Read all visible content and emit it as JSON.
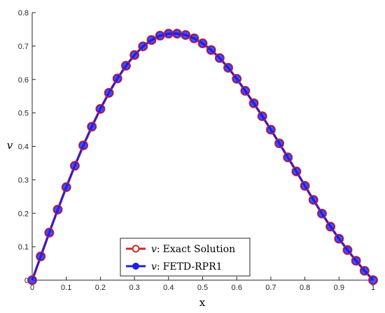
{
  "chart_data": {
    "type": "line",
    "title": "",
    "xlabel": "x",
    "ylabel": "v",
    "xlim": [
      0,
      1
    ],
    "ylim": [
      0,
      0.8
    ],
    "xticks": [
      "0",
      "0.1",
      "0.2",
      "0.3",
      "0.4",
      "0.5",
      "0.6",
      "0.7",
      "0.8",
      "0.9",
      "1"
    ],
    "yticks": [
      "0",
      "0.1",
      "0.2",
      "0.3",
      "0.4",
      "0.5",
      "0.6",
      "0.7",
      "0.8"
    ],
    "grid": false,
    "legend_position": "bottom-center",
    "x": [
      0,
      0.025,
      0.05,
      0.075,
      0.1,
      0.125,
      0.15,
      0.175,
      0.2,
      0.225,
      0.25,
      0.275,
      0.3,
      0.325,
      0.35,
      0.375,
      0.4,
      0.425,
      0.45,
      0.475,
      0.5,
      0.525,
      0.55,
      0.575,
      0.6,
      0.625,
      0.65,
      0.675,
      0.7,
      0.725,
      0.75,
      0.775,
      0.8,
      0.825,
      0.85,
      0.875,
      0.9,
      0.925,
      0.95,
      0.975,
      1
    ],
    "series": [
      {
        "name": "Exact Solution",
        "name_prefix": "v",
        "color": "#d62728",
        "marker": "circle-open",
        "values": [
          0,
          0.071,
          0.142,
          0.211,
          0.278,
          0.342,
          0.403,
          0.459,
          0.512,
          0.56,
          0.603,
          0.641,
          0.673,
          0.699,
          0.718,
          0.731,
          0.737,
          0.737,
          0.733,
          0.723,
          0.708,
          0.688,
          0.664,
          0.635,
          0.602,
          0.566,
          0.529,
          0.49,
          0.45,
          0.409,
          0.367,
          0.325,
          0.282,
          0.24,
          0.199,
          0.16,
          0.124,
          0.09,
          0.058,
          0.028,
          0
        ]
      },
      {
        "name": "FETD-RPR1",
        "name_prefix": "v",
        "color": "#1f1fe6",
        "marker": "circle-filled",
        "values": [
          0,
          0.071,
          0.142,
          0.211,
          0.278,
          0.342,
          0.403,
          0.459,
          0.512,
          0.56,
          0.603,
          0.641,
          0.673,
          0.699,
          0.718,
          0.731,
          0.737,
          0.737,
          0.733,
          0.723,
          0.708,
          0.688,
          0.664,
          0.635,
          0.602,
          0.566,
          0.529,
          0.49,
          0.45,
          0.409,
          0.367,
          0.325,
          0.282,
          0.24,
          0.199,
          0.16,
          0.124,
          0.09,
          0.058,
          0.028,
          0
        ]
      }
    ]
  },
  "legend": {
    "entries": [
      {
        "prefix": "v",
        "sep": ":",
        "label": "Exact Solution"
      },
      {
        "prefix": "v",
        "sep": ":",
        "label": "FETD-RPR1"
      }
    ]
  }
}
